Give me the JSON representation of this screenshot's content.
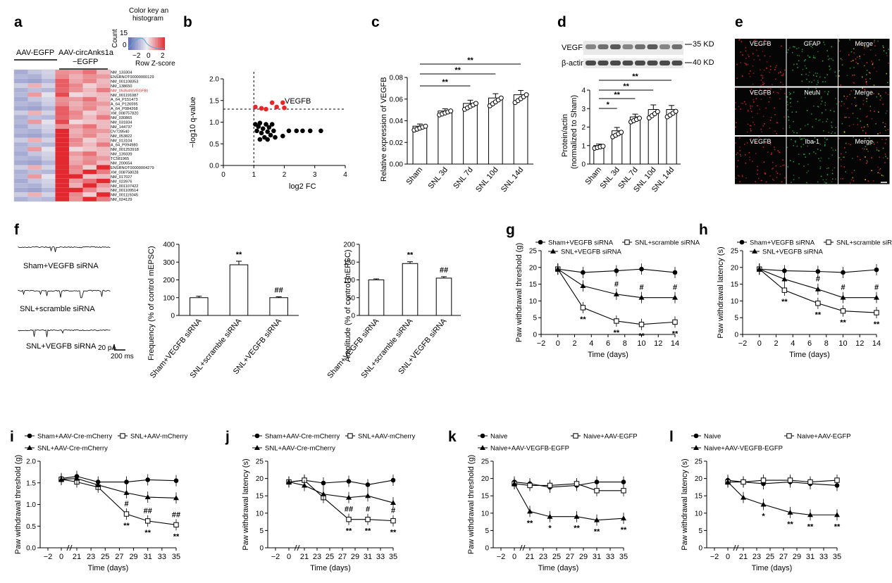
{
  "colors": {
    "red": "#e8262a",
    "heat_low": "#5b67b3",
    "heat_mid": "#f1eef2",
    "heat_high": "#e21f26",
    "highlight": "#c92a2a",
    "green": "#1fb24a"
  },
  "panel_a": {
    "letter": "a",
    "group1": "AAV-EGFP",
    "group2": "AAV-circAnks1a",
    "group2b": "−EGFP",
    "key_title": "Color key an",
    "key_title2": "histogram",
    "key_count": "Count",
    "key_15": "15",
    "key_0": "0",
    "key_neg2": "−2",
    "key_zero": "0",
    "key_pos2": "2",
    "key_label": "Row Z-score",
    "genes": [
      "NM_133304",
      "ENSRNOT00000000129",
      "NM_001108353",
      "NM_138650",
      "NM_053549(VEGFB)",
      "NM_001191087",
      "A_64_P151473",
      "A_64_P126595",
      "A_64_P084268",
      "XM_008757820",
      "NM_030865",
      "NM_031834",
      "NM_144737",
      "DV728540",
      "NM_053822",
      "NM_013104",
      "A_64_P094980",
      "NM_001253918",
      "NM_139339",
      "TC581965",
      "NM_200654",
      "ENSRNOT00000004279",
      "XM_008758028",
      "NM_017027",
      "NM_023976",
      "NM_001107422",
      "NM_001109514",
      "NM_001115045",
      "NM_024129"
    ],
    "highlight_index": 4
  },
  "panel_b": {
    "letter": "b",
    "type": "scatter",
    "xlabel": "log2 FC",
    "ylabel": "−log10 q-value",
    "label": "VEGFB",
    "xticks": [
      "0",
      "1",
      "2",
      "3",
      "4"
    ],
    "yticks": [
      "0.0",
      "0.5",
      "1.0",
      "1.5",
      "2.0"
    ],
    "xlim": [
      0,
      4
    ],
    "ylim": [
      0,
      2
    ],
    "threshold_x": 1,
    "threshold_y": 1.3,
    "sig_points": [
      [
        1.05,
        1.35
      ],
      [
        1.25,
        1.32
      ],
      [
        1.4,
        1.3
      ],
      [
        1.6,
        1.45
      ],
      [
        1.75,
        1.35
      ],
      [
        2.0,
        1.33
      ],
      [
        1.95,
        1.45
      ]
    ],
    "ns_points": [
      [
        1.05,
        0.95
      ],
      [
        1.1,
        0.8
      ],
      [
        1.15,
        0.9
      ],
      [
        1.2,
        0.98
      ],
      [
        1.25,
        0.75
      ],
      [
        1.3,
        0.85
      ],
      [
        1.35,
        0.65
      ],
      [
        1.4,
        0.95
      ],
      [
        1.45,
        0.78
      ],
      [
        1.5,
        0.88
      ],
      [
        1.55,
        0.7
      ],
      [
        1.6,
        0.95
      ],
      [
        1.65,
        0.8
      ],
      [
        1.2,
        0.6
      ],
      [
        1.45,
        0.6
      ],
      [
        1.7,
        0.65
      ],
      [
        1.95,
        0.68
      ],
      [
        2.15,
        0.8
      ],
      [
        2.4,
        0.8
      ],
      [
        2.6,
        0.8
      ],
      [
        2.85,
        0.8
      ],
      [
        3.2,
        0.8
      ]
    ]
  },
  "panel_c": {
    "letter": "c",
    "type": "bar",
    "ylabel": "Relative expression of VEGFB",
    "categories": [
      "Sham",
      "SNL 3d",
      "SNL 7d",
      "SNL 10d",
      "SNL 14d"
    ],
    "values": [
      0.035,
      0.049,
      0.056,
      0.061,
      0.064
    ],
    "errors": [
      0.002,
      0.002,
      0.003,
      0.004,
      0.004
    ],
    "ylim": [
      0,
      0.08
    ],
    "yticks": [
      "0.00",
      "0.02",
      "0.04",
      "0.06",
      "0.08"
    ],
    "sig": [
      "**",
      "**",
      "**"
    ]
  },
  "panel_d": {
    "letter": "d",
    "type": "bar",
    "blot1": "VEGFB",
    "blot2": "β-actin",
    "kd1": "35 KD",
    "kd2": "40 KD",
    "ylabel1": "Protein/actin",
    "ylabel2": "(normalized to Sham)",
    "categories": [
      "Sham",
      "SNL 3d",
      "SNL 7d",
      "SNL 10d",
      "SNL 14d"
    ],
    "values": [
      1.0,
      1.8,
      2.55,
      2.95,
      2.95
    ],
    "errors": [
      0.08,
      0.18,
      0.15,
      0.25,
      0.22
    ],
    "ylim": [
      0,
      4
    ],
    "yticks": [
      "0",
      "1",
      "2",
      "3",
      "4"
    ],
    "sig": [
      "*",
      "**",
      "**",
      "**"
    ]
  },
  "panel_e": {
    "letter": "e",
    "labels": [
      [
        "VEGFB",
        "GFAP",
        "Merge"
      ],
      [
        "VEGFB",
        "NeuN",
        "Merge"
      ],
      [
        "VEGFB",
        "Iba-1",
        "Merge"
      ]
    ]
  },
  "panel_f": {
    "letter": "f",
    "traces": [
      "Sham+VEGFB siRNA",
      "SNL+scramble siRNA",
      "SNL+VEGFB siRNA"
    ],
    "scale_pa": "20 pA",
    "scale_ms": "200 ms",
    "freq": {
      "type": "bar",
      "ylabel": "Frequency (% of control mEPSC)",
      "categories": [
        "Sham+VEGFB siRNA",
        "SNL+scramble siRNA",
        "SNL+VEGFB siRNA"
      ],
      "values": [
        100,
        285,
        100
      ],
      "errors": [
        8,
        20,
        5
      ],
      "ylim": [
        0,
        400
      ],
      "yticks": [
        "0",
        "100",
        "200",
        "300",
        "400"
      ],
      "marks": [
        "",
        "**",
        "##"
      ]
    },
    "amp": {
      "type": "bar",
      "ylabel": "Amplitude (% of control mEPSC)",
      "categories": [
        "Sham+VEGFB siRNA",
        "SNL+scramble siRNA",
        "SNL+VEGFB siRNA"
      ],
      "values": [
        100,
        146,
        105
      ],
      "errors": [
        3,
        5,
        4
      ],
      "ylim": [
        0,
        200
      ],
      "yticks": [
        "0",
        "50",
        "100",
        "150",
        "200"
      ],
      "marks": [
        "",
        "**",
        "##"
      ]
    }
  },
  "panel_g": {
    "letter": "g",
    "type": "line",
    "ylabel": "Paw withdrawal threshold (g)",
    "xlabel": "Time (days)",
    "legend": [
      "Sham+VEGFB siRNA",
      "SNL+scramble siRNA",
      "SNL+VEGFB siRNA"
    ],
    "x": [
      0,
      3,
      7,
      10,
      14
    ],
    "series": [
      {
        "name": "Sham+VEGFB siRNA",
        "marker": "circle",
        "values": [
          19.5,
          18.5,
          19,
          19.5,
          18.5
        ]
      },
      {
        "name": "SNL+scramble siRNA",
        "marker": "square",
        "values": [
          19.5,
          8,
          4,
          3,
          3.7
        ]
      },
      {
        "name": "SNL+VEGFB siRNA",
        "marker": "triangle",
        "values": [
          19.5,
          14.5,
          12,
          11,
          11
        ]
      }
    ],
    "xticks": [
      "−2",
      "0",
      "2",
      "4",
      "6",
      "8",
      "10",
      "12",
      "14"
    ],
    "yticks": [
      "0",
      "5",
      "10",
      "15",
      "20",
      "25"
    ],
    "ylim": [
      0,
      25
    ],
    "xlim": [
      -2,
      14
    ],
    "hash_marks": [
      "#",
      "#",
      "#"
    ],
    "star_marks": [
      "**",
      "**",
      "**",
      "**"
    ]
  },
  "panel_h": {
    "letter": "h",
    "type": "line",
    "ylabel": "Paw withdrawal latency (s)",
    "xlabel": "Time (days)",
    "legend": [
      "Sham+VEGFB siRNA",
      "SNL+scramble siRNA",
      "SNL+VEGFB siRNA"
    ],
    "x": [
      0,
      3,
      7,
      10,
      14
    ],
    "series": [
      {
        "name": "Sham+VEGFB siRNA",
        "marker": "circle",
        "values": [
          19.5,
          19,
          18.8,
          18.5,
          19.3
        ]
      },
      {
        "name": "SNL+scramble siRNA",
        "marker": "square",
        "values": [
          19.5,
          13.2,
          9.3,
          7,
          6.5
        ]
      },
      {
        "name": "SNL+VEGFB siRNA",
        "marker": "triangle",
        "values": [
          19.5,
          16.5,
          13.5,
          11,
          11
        ]
      }
    ],
    "xticks": [
      "−2",
      "0",
      "2",
      "4",
      "6",
      "8",
      "10",
      "12",
      "14"
    ],
    "yticks": [
      "0",
      "5",
      "10",
      "15",
      "20",
      "25"
    ],
    "ylim": [
      0,
      25
    ],
    "xlim": [
      -2,
      14
    ],
    "hash_marks": [
      "#",
      "#",
      "#"
    ],
    "star_marks": [
      "**",
      "**",
      "**",
      "**"
    ]
  },
  "panel_i": {
    "letter": "i",
    "type": "line",
    "ylabel": "Paw withdrawal threshold (g)",
    "xlabel": "Time (days)",
    "legend": [
      "Sham+AAV-Cre-mCherry",
      "SNL+AAV-mCherry",
      "SNL+AAV-Cre-mCherry"
    ],
    "x": [
      0,
      21,
      24,
      28,
      31,
      35
    ],
    "series": [
      {
        "name": "Sham+AAV-Cre-mCherry",
        "marker": "circle",
        "values": [
          1.6,
          1.65,
          1.52,
          1.52,
          1.57,
          1.55
        ]
      },
      {
        "name": "SNL+AAV-mCherry",
        "marker": "square",
        "values": [
          1.58,
          1.52,
          1.4,
          0.78,
          0.62,
          0.53
        ]
      },
      {
        "name": "SNL+AAV-Cre-mCherry",
        "marker": "triangle",
        "values": [
          1.58,
          1.6,
          1.45,
          1.27,
          1.17,
          1.15
        ]
      }
    ],
    "xticks": [
      "−2",
      "0",
      "21",
      "23",
      "25",
      "27",
      "29",
      "31",
      "33",
      "35"
    ],
    "yticks": [
      "0.0",
      "0.5",
      "1.0",
      "1.5",
      "2.0"
    ],
    "ylim": [
      0,
      2
    ],
    "hash_marks": [
      "#",
      "##",
      "##"
    ],
    "star_marks": [
      "**",
      "**",
      "**"
    ]
  },
  "panel_j": {
    "letter": "j",
    "type": "line",
    "ylabel": "Paw withdrawal latency (s)",
    "xlabel": "Time (days)",
    "legend": [
      "Sham+AAV-Cre-mCherry",
      "SNL+AAV-mCherry",
      "SNL+AAV-Cre-mCherry"
    ],
    "x": [
      0,
      21,
      24,
      28,
      31,
      35
    ],
    "series": [
      {
        "name": "Sham+AAV-Cre-mCherry",
        "marker": "circle",
        "values": [
          19,
          19.5,
          18.7,
          19.2,
          18.2,
          19.5
        ]
      },
      {
        "name": "SNL+AAV-mCherry",
        "marker": "square",
        "values": [
          19,
          19.5,
          14.5,
          8.2,
          8.2,
          7.8
        ]
      },
      {
        "name": "SNL+AAV-Cre-mCherry",
        "marker": "triangle",
        "values": [
          19,
          18,
          15.5,
          14.5,
          15,
          13
        ]
      }
    ],
    "xticks": [
      "−2",
      "0",
      "21",
      "23",
      "25",
      "27",
      "29",
      "31",
      "33",
      "35"
    ],
    "yticks": [
      "0",
      "5",
      "10",
      "15",
      "20",
      "25"
    ],
    "ylim": [
      0,
      25
    ],
    "hash_marks": [
      "##",
      "#",
      "#"
    ],
    "star_marks": [
      "**",
      "**",
      "**"
    ]
  },
  "panel_k": {
    "letter": "k",
    "type": "line",
    "ylabel": "Paw withdrawal threshold (g)",
    "xlabel": "Time (days)",
    "legend": [
      "Naive",
      "Naive+AAV-EGFP",
      "Naive+AAV-VEGFB-EGFP"
    ],
    "x": [
      0,
      21,
      24,
      28,
      31,
      35
    ],
    "series": [
      {
        "name": "Naive",
        "marker": "circle",
        "values": [
          19,
          18.5,
          17.5,
          18,
          19,
          19
        ]
      },
      {
        "name": "Naive+AAV-EGFP",
        "marker": "square",
        "values": [
          18.5,
          18,
          18,
          18.5,
          16.5,
          16.5
        ]
      },
      {
        "name": "Naive+AAV-VEGFB-EGFP",
        "marker": "triangle",
        "values": [
          18.5,
          10.5,
          9,
          9,
          8,
          8.5
        ]
      }
    ],
    "xticks": [
      "−2",
      "0",
      "21",
      "23",
      "25",
      "27",
      "29",
      "31",
      "33",
      "35"
    ],
    "yticks": [
      "0",
      "5",
      "10",
      "15",
      "20",
      "25"
    ],
    "ylim": [
      0,
      25
    ],
    "star_marks": [
      "**",
      "*",
      "**",
      "**",
      "**"
    ]
  },
  "panel_l": {
    "letter": "l",
    "type": "line",
    "ylabel": "Paw withdrawal latency (s)",
    "xlabel": "Time (days)",
    "legend": [
      "Naive",
      "Naive+AAV-EGFP",
      "Naive+AAV-VEGFB-EGFP"
    ],
    "x": [
      0,
      21,
      24,
      28,
      31,
      35
    ],
    "series": [
      {
        "name": "Naive",
        "marker": "circle",
        "values": [
          19.5,
          19,
          18.5,
          19,
          18.5,
          18
        ]
      },
      {
        "name": "Naive+AAV-EGFP",
        "marker": "square",
        "values": [
          19,
          19,
          19.5,
          19.5,
          19,
          19.5
        ]
      },
      {
        "name": "Naive+AAV-VEGFB-EGFP",
        "marker": "triangle",
        "values": [
          19,
          14.5,
          12.5,
          10.2,
          9.5,
          9.5
        ]
      }
    ],
    "xticks": [
      "−2",
      "0",
      "21",
      "23",
      "25",
      "27",
      "29",
      "31",
      "33",
      "35"
    ],
    "yticks": [
      "0",
      "5",
      "10",
      "15",
      "20",
      "25"
    ],
    "ylim": [
      0,
      25
    ],
    "star_marks": [
      "*",
      "**",
      "**",
      "**"
    ]
  }
}
